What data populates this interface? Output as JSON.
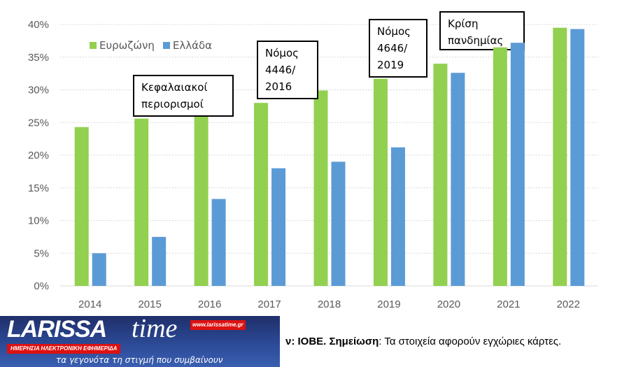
{
  "chart_data": {
    "type": "bar",
    "categories": [
      "2014",
      "2015",
      "2016",
      "2017",
      "2018",
      "2019",
      "2020",
      "2021",
      "2022"
    ],
    "series": [
      {
        "name": "Ευρωζώνη",
        "color": "#92d050",
        "values": [
          24.3,
          25.6,
          27.0,
          28.0,
          29.9,
          31.7,
          34.0,
          36.5,
          39.5
        ]
      },
      {
        "name": "Ελλάδα",
        "color": "#5b9bd5",
        "values": [
          5.0,
          7.5,
          13.3,
          18.0,
          19.0,
          21.2,
          32.6,
          37.2,
          39.3
        ]
      }
    ],
    "ylim": [
      0,
      40
    ],
    "yticks": [
      "0%",
      "5%",
      "10%",
      "15%",
      "20%",
      "25%",
      "30%",
      "35%",
      "40%"
    ],
    "grid": true,
    "legend": "top-left",
    "annotations": [
      "Κεφαλαιακοί\nπεριορισμοί",
      "Νόμος\n4446/\n2016",
      "Νόμος\n4646/\n2019",
      "Κρίση\nπανδημίας"
    ]
  },
  "footer": {
    "source_tail": "ν: ΙΟΒΕ. ",
    "note_label": "Σημείωση",
    "note_text": ": Τα στοιχεία αφορούν εγχώριες κάρτες."
  },
  "logo": {
    "brand": "LARISSA",
    "time": "time",
    "url": "www.larissatime.gr",
    "tag": "ΗΜΕΡΗΣΙΑ ΗΛΕΚΤΡΟΝΙΚΗ ΕΦΗΜΕΡΙΔΑ",
    "slogan": "τα γεγονότα τη στιγμή που συμβαίνουν"
  }
}
